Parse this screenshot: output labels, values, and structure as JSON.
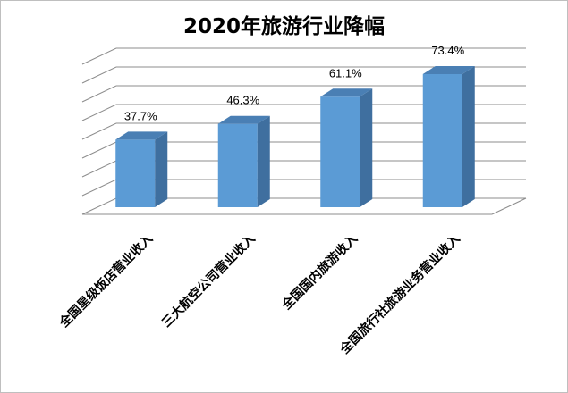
{
  "chart_data": {
    "type": "bar",
    "title": "2020年旅游行业降幅",
    "categories": [
      "全国星级饭店营业收入",
      "三大航空公司营业收入",
      "全国国内旅游收入",
      "全国旅行社旅游业务营业收入"
    ],
    "values": [
      37.7,
      46.3,
      61.1,
      73.4
    ],
    "data_labels": [
      "37.7%",
      "46.3%",
      "61.1%",
      "73.4%"
    ],
    "ylim": [
      0,
      80
    ],
    "grid": true,
    "three_d": true,
    "bar_color": "#5b9bd5",
    "legend": "none"
  }
}
